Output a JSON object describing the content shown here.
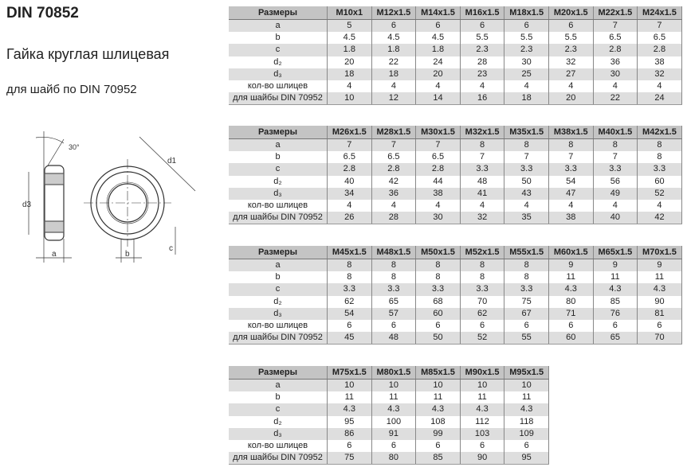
{
  "title": "DIN 70852",
  "subtitle": "Гайка круглая шлицевая",
  "note": "для шайб по DIN 70952",
  "drawing": {
    "labels": {
      "angle": "30°",
      "d1": "d1",
      "d3": "d3",
      "a": "a",
      "b": "b",
      "c": "c"
    }
  },
  "row_labels": [
    "a",
    "b",
    "c",
    "d₂",
    "d₃",
    "кол-во шлицев",
    "для шайбы DIN 70952"
  ],
  "header_label": "Размеры",
  "tables": [
    {
      "sizes": [
        "M10x1",
        "M12x1.5",
        "M14x1.5",
        "M16x1.5",
        "M18x1.5",
        "M20x1.5",
        "M22x1.5",
        "M24x1.5"
      ],
      "rows": [
        [
          "5",
          "6",
          "6",
          "6",
          "6",
          "6",
          "7",
          "7"
        ],
        [
          "4.5",
          "4.5",
          "4.5",
          "5.5",
          "5.5",
          "5.5",
          "6.5",
          "6.5"
        ],
        [
          "1.8",
          "1.8",
          "1.8",
          "2.3",
          "2.3",
          "2.3",
          "2.8",
          "2.8"
        ],
        [
          "20",
          "22",
          "24",
          "28",
          "30",
          "32",
          "36",
          "38"
        ],
        [
          "18",
          "18",
          "20",
          "23",
          "25",
          "27",
          "30",
          "32"
        ],
        [
          "4",
          "4",
          "4",
          "4",
          "4",
          "4",
          "4",
          "4"
        ],
        [
          "10",
          "12",
          "14",
          "16",
          "18",
          "20",
          "22",
          "24"
        ]
      ]
    },
    {
      "sizes": [
        "M26x1.5",
        "M28x1.5",
        "M30x1.5",
        "M32x1.5",
        "M35x1.5",
        "M38x1.5",
        "M40x1.5",
        "M42x1.5"
      ],
      "rows": [
        [
          "7",
          "7",
          "7",
          "8",
          "8",
          "8",
          "8",
          "8"
        ],
        [
          "6.5",
          "6.5",
          "6.5",
          "7",
          "7",
          "7",
          "7",
          "8"
        ],
        [
          "2.8",
          "2.8",
          "2.8",
          "3.3",
          "3.3",
          "3.3",
          "3.3",
          "3.3"
        ],
        [
          "40",
          "42",
          "44",
          "48",
          "50",
          "54",
          "56",
          "60"
        ],
        [
          "34",
          "36",
          "38",
          "41",
          "43",
          "47",
          "49",
          "52"
        ],
        [
          "4",
          "4",
          "4",
          "4",
          "4",
          "4",
          "4",
          "4"
        ],
        [
          "26",
          "28",
          "30",
          "32",
          "35",
          "38",
          "40",
          "42"
        ]
      ]
    },
    {
      "sizes": [
        "M45x1.5",
        "M48x1.5",
        "M50x1.5",
        "M52x1.5",
        "M55x1.5",
        "M60x1.5",
        "M65x1.5",
        "M70x1.5"
      ],
      "rows": [
        [
          "8",
          "8",
          "8",
          "8",
          "8",
          "9",
          "9",
          "9"
        ],
        [
          "8",
          "8",
          "8",
          "8",
          "8",
          "11",
          "11",
          "11"
        ],
        [
          "3.3",
          "3.3",
          "3.3",
          "3.3",
          "3.3",
          "4.3",
          "4.3",
          "4.3"
        ],
        [
          "62",
          "65",
          "68",
          "70",
          "75",
          "80",
          "85",
          "90"
        ],
        [
          "54",
          "57",
          "60",
          "62",
          "67",
          "71",
          "76",
          "81"
        ],
        [
          "6",
          "6",
          "6",
          "6",
          "6",
          "6",
          "6",
          "6"
        ],
        [
          "45",
          "48",
          "50",
          "52",
          "55",
          "60",
          "65",
          "70"
        ]
      ]
    },
    {
      "sizes": [
        "M75x1.5",
        "M80x1.5",
        "M85x1.5",
        "M90x1.5",
        "M95x1.5"
      ],
      "rows": [
        [
          "10",
          "10",
          "10",
          "10",
          "10"
        ],
        [
          "11",
          "11",
          "11",
          "11",
          "11"
        ],
        [
          "4.3",
          "4.3",
          "4.3",
          "4.3",
          "4.3"
        ],
        [
          "95",
          "100",
          "108",
          "112",
          "118"
        ],
        [
          "86",
          "91",
          "99",
          "103",
          "109"
        ],
        [
          "6",
          "6",
          "6",
          "6",
          "6"
        ],
        [
          "75",
          "80",
          "85",
          "90",
          "95"
        ]
      ]
    }
  ]
}
